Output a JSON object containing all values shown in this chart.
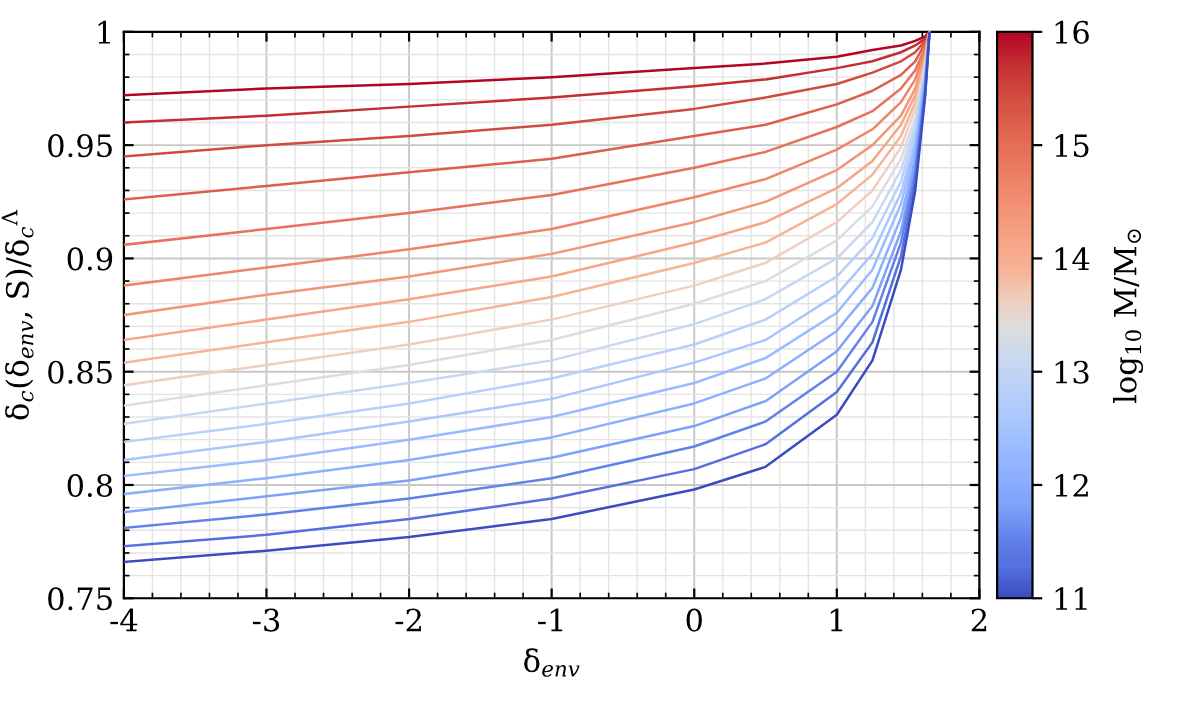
{
  "chart_data": {
    "type": "line",
    "xlabel": "δ$_{env}$",
    "ylabel": "δ$_{c}$(δ$_{env}$, S)/δ$_{c}$$^{Λ}$",
    "clabel": "log$_{10}$ M/M$_{⊙}$",
    "x": [
      -4,
      -3,
      -2,
      -1,
      0,
      0.5,
      1,
      1.25,
      1.45,
      1.55,
      1.62,
      1.65
    ],
    "xlim": [
      -4,
      2
    ],
    "xticks": [
      -4,
      -3,
      -2,
      -1,
      0,
      1,
      2
    ],
    "ylim": [
      0.75,
      1
    ],
    "yticks": [
      0.75,
      0.8,
      0.85,
      0.9,
      0.95,
      1
    ],
    "clim": [
      11,
      16
    ],
    "cticks": [
      11,
      12,
      13,
      14,
      15,
      16
    ],
    "grid": true,
    "legend": false,
    "line_style": "solid",
    "marker": "none",
    "series": [
      {
        "color": "#b40426",
        "values": [
          0.972,
          0.975,
          0.977,
          0.98,
          0.984,
          0.986,
          0.989,
          0.992,
          0.994,
          0.996,
          0.998,
          1
        ]
      },
      {
        "color": "#c32e31",
        "values": [
          0.96,
          0.963,
          0.967,
          0.971,
          0.976,
          0.979,
          0.984,
          0.987,
          0.991,
          0.994,
          0.997,
          1
        ]
      },
      {
        "color": "#d1493f",
        "values": [
          0.945,
          0.95,
          0.954,
          0.959,
          0.966,
          0.971,
          0.977,
          0.982,
          0.987,
          0.991,
          0.996,
          1
        ]
      },
      {
        "color": "#dd5f4b",
        "values": [
          0.926,
          0.932,
          0.938,
          0.944,
          0.954,
          0.959,
          0.968,
          0.974,
          0.981,
          0.987,
          0.995,
          1
        ]
      },
      {
        "color": "#e67259",
        "values": [
          0.906,
          0.913,
          0.92,
          0.928,
          0.94,
          0.947,
          0.958,
          0.965,
          0.975,
          0.983,
          0.993,
          1
        ]
      },
      {
        "color": "#ee8468",
        "values": [
          0.888,
          0.896,
          0.904,
          0.913,
          0.927,
          0.935,
          0.948,
          0.957,
          0.969,
          0.979,
          0.992,
          1
        ]
      },
      {
        "color": "#f39577",
        "values": [
          0.875,
          0.884,
          0.892,
          0.902,
          0.916,
          0.925,
          0.939,
          0.95,
          0.963,
          0.975,
          0.99,
          1
        ]
      },
      {
        "color": "#f6a586",
        "values": [
          0.864,
          0.873,
          0.882,
          0.892,
          0.907,
          0.916,
          0.931,
          0.943,
          0.959,
          0.972,
          0.989,
          1
        ]
      },
      {
        "color": "#f7b497",
        "values": [
          0.854,
          0.863,
          0.872,
          0.883,
          0.898,
          0.907,
          0.924,
          0.937,
          0.954,
          0.969,
          0.988,
          1
        ]
      },
      {
        "color": "#efcfbf",
        "values": [
          0.844,
          0.853,
          0.862,
          0.873,
          0.888,
          0.898,
          0.916,
          0.93,
          0.949,
          0.966,
          0.986,
          1
        ]
      },
      {
        "color": "#dcdde1",
        "values": [
          0.835,
          0.844,
          0.853,
          0.864,
          0.88,
          0.89,
          0.908,
          0.923,
          0.944,
          0.962,
          0.985,
          1
        ]
      },
      {
        "color": "#c9d7f0",
        "values": [
          0.827,
          0.836,
          0.845,
          0.855,
          0.871,
          0.882,
          0.9,
          0.916,
          0.939,
          0.959,
          0.984,
          1
        ]
      },
      {
        "color": "#b9d0f9",
        "values": [
          0.819,
          0.827,
          0.836,
          0.847,
          0.862,
          0.873,
          0.892,
          0.909,
          0.934,
          0.956,
          0.982,
          1
        ]
      },
      {
        "color": "#aac7fd",
        "values": [
          0.811,
          0.819,
          0.828,
          0.838,
          0.854,
          0.864,
          0.884,
          0.902,
          0.929,
          0.952,
          0.981,
          1
        ]
      },
      {
        "color": "#9abbff",
        "values": [
          0.804,
          0.811,
          0.82,
          0.83,
          0.845,
          0.856,
          0.876,
          0.895,
          0.924,
          0.949,
          0.98,
          1
        ]
      },
      {
        "color": "#8caffe",
        "values": [
          0.796,
          0.803,
          0.811,
          0.821,
          0.836,
          0.847,
          0.868,
          0.887,
          0.918,
          0.945,
          0.978,
          1
        ]
      },
      {
        "color": "#7ea1f9",
        "values": [
          0.788,
          0.795,
          0.802,
          0.812,
          0.826,
          0.837,
          0.859,
          0.879,
          0.912,
          0.942,
          0.977,
          1
        ]
      },
      {
        "color": "#6282ea",
        "values": [
          0.781,
          0.787,
          0.794,
          0.803,
          0.817,
          0.828,
          0.85,
          0.872,
          0.907,
          0.938,
          0.975,
          1
        ]
      },
      {
        "color": "#5470de",
        "values": [
          0.773,
          0.778,
          0.785,
          0.794,
          0.807,
          0.818,
          0.841,
          0.863,
          0.901,
          0.934,
          0.973,
          1
        ]
      },
      {
        "color": "#3b4cc0",
        "values": [
          0.766,
          0.771,
          0.777,
          0.785,
          0.798,
          0.808,
          0.831,
          0.855,
          0.895,
          0.93,
          0.972,
          1
        ]
      }
    ]
  }
}
